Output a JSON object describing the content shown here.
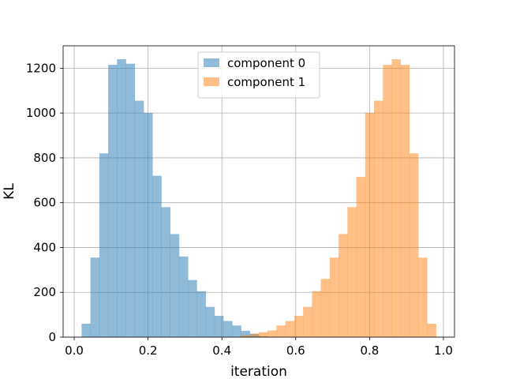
{
  "chart_data": {
    "type": "histogram",
    "xlabel": "iteration",
    "ylabel": "KL",
    "xlim": [
      -0.03,
      1.03
    ],
    "ylim": [
      0,
      1300
    ],
    "x_ticks": [
      0.0,
      0.2,
      0.4,
      0.6,
      0.8,
      1.0
    ],
    "x_tick_labels": [
      "0.0",
      "0.2",
      "0.4",
      "0.6",
      "0.8",
      "1.0"
    ],
    "y_ticks": [
      0,
      200,
      400,
      600,
      800,
      1000,
      1200
    ],
    "y_tick_labels": [
      "0",
      "200",
      "400",
      "600",
      "800",
      "1000",
      "1200"
    ],
    "grid": true,
    "legend_position": "upper-center",
    "bins": {
      "start": 0.02,
      "width": 0.024
    },
    "series": [
      {
        "name": "component 0",
        "color": "#1f77b4",
        "alpha": 0.5,
        "bin_start": 0.02,
        "values": [
          60,
          355,
          820,
          1215,
          1240,
          1220,
          1055,
          1000,
          720,
          580,
          460,
          360,
          255,
          205,
          135,
          95,
          72,
          52,
          28,
          15,
          4
        ]
      },
      {
        "name": "component 1",
        "color": "#ff7f0e",
        "alpha": 0.5,
        "bin_start": 0.452,
        "values": [
          8,
          15,
          22,
          30,
          52,
          72,
          95,
          135,
          205,
          260,
          355,
          460,
          580,
          715,
          1000,
          1055,
          1215,
          1240,
          1215,
          820,
          355,
          60
        ]
      }
    ]
  }
}
